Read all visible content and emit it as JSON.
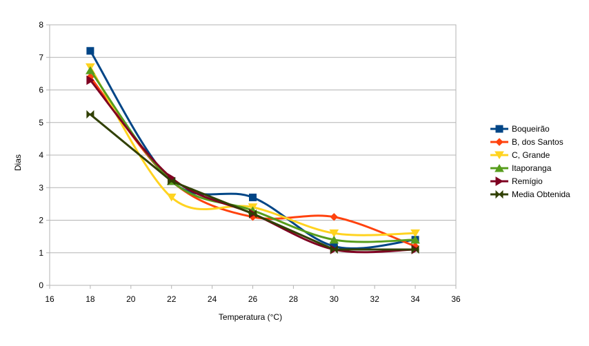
{
  "chart_data": {
    "type": "scatter",
    "title": "",
    "xlabel": "Temperatura (°C)",
    "ylabel": "Dias",
    "xlim": [
      16,
      36
    ],
    "ylim": [
      0,
      8
    ],
    "xticks": [
      16,
      18,
      20,
      22,
      24,
      26,
      28,
      30,
      32,
      34,
      36
    ],
    "yticks": [
      0,
      1,
      2,
      3,
      4,
      5,
      6,
      7,
      8
    ],
    "grid": "horizontal",
    "legend_position": "right",
    "x": [
      18,
      22,
      26,
      30,
      34
    ],
    "series": [
      {
        "name": "Boqueirão",
        "values": [
          7.2,
          3.2,
          2.7,
          1.2,
          1.4
        ],
        "color": "#004586",
        "marker": "square",
        "smooth": true
      },
      {
        "name": "B, dos Santos",
        "values": [
          6.4,
          3.2,
          2.1,
          2.1,
          1.2
        ],
        "color": "#ff420e",
        "marker": "diamond",
        "smooth": true
      },
      {
        "name": "C, Grande",
        "values": [
          6.7,
          2.7,
          2.4,
          1.6,
          1.6
        ],
        "color": "#ffd320",
        "marker": "triangle-down",
        "smooth": true
      },
      {
        "name": "Itaporanga",
        "values": [
          6.6,
          3.2,
          2.3,
          1.4,
          1.4
        ],
        "color": "#579d1c",
        "marker": "triangle-up",
        "smooth": true
      },
      {
        "name": "Remígio",
        "values": [
          6.3,
          3.3,
          2.2,
          1.1,
          1.1
        ],
        "color": "#7e0021",
        "marker": "triangle-right",
        "smooth": true
      },
      {
        "name": "Media Obtenida",
        "values": [
          5.25,
          3.2,
          2.2,
          1.1,
          1.1
        ],
        "color": "#314004",
        "marker": "bowtie",
        "smooth": false
      }
    ]
  }
}
